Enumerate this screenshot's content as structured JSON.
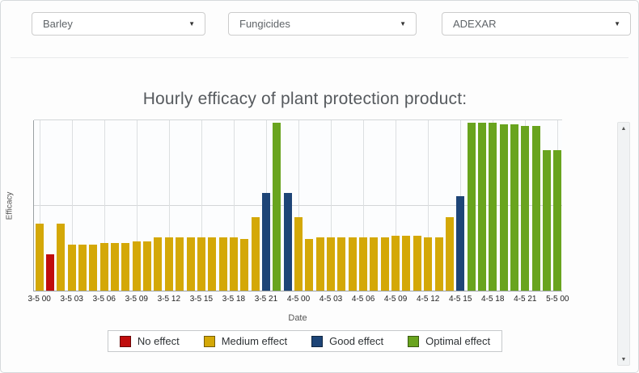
{
  "filters": {
    "crop": {
      "value": "Barley"
    },
    "category": {
      "value": "Fungicides"
    },
    "product": {
      "value": "ADEXAR"
    }
  },
  "icons": {
    "dropdown_arrow": "▼",
    "scroll_up": "▲",
    "scroll_down": "▼"
  },
  "chart_data": {
    "type": "bar",
    "title": "Hourly efficacy of plant protection product:",
    "xlabel": "Date",
    "ylabel": "Efficacy",
    "ylim": [
      0,
      100
    ],
    "grid": true,
    "gridline_values": [
      50,
      100
    ],
    "tick_every": 3,
    "legend_position": "bottom",
    "colors": {
      "no": "#c00d0d",
      "medium": "#d4a807",
      "good": "#1e4577",
      "optimal": "#69a41e"
    },
    "legend": [
      {
        "key": "no",
        "label": "No effect"
      },
      {
        "key": "medium",
        "label": "Medium effect"
      },
      {
        "key": "good",
        "label": "Good effect"
      },
      {
        "key": "optimal",
        "label": "Optimal effect"
      }
    ],
    "tick_labels": [
      "3-5 00",
      "3-5 03",
      "3-5 06",
      "3-5 09",
      "3-5 12",
      "3-5 15",
      "3-5 18",
      "3-5 21",
      "4-5 00",
      "4-5 03",
      "4-5 06",
      "4-5 09",
      "4-5 12",
      "4-5 15",
      "4-5 18",
      "4-5 21",
      "5-5 00"
    ],
    "bars": [
      {
        "x": "3-5 00",
        "value": 39,
        "effect": "medium"
      },
      {
        "x": "3-5 01",
        "value": 21,
        "effect": "no"
      },
      {
        "x": "3-5 02",
        "value": 39,
        "effect": "medium"
      },
      {
        "x": "3-5 03",
        "value": 27,
        "effect": "medium"
      },
      {
        "x": "3-5 04",
        "value": 27,
        "effect": "medium"
      },
      {
        "x": "3-5 05",
        "value": 27,
        "effect": "medium"
      },
      {
        "x": "3-5 06",
        "value": 28,
        "effect": "medium"
      },
      {
        "x": "3-5 07",
        "value": 28,
        "effect": "medium"
      },
      {
        "x": "3-5 08",
        "value": 28,
        "effect": "medium"
      },
      {
        "x": "3-5 09",
        "value": 29,
        "effect": "medium"
      },
      {
        "x": "3-5 10",
        "value": 29,
        "effect": "medium"
      },
      {
        "x": "3-5 11",
        "value": 31,
        "effect": "medium"
      },
      {
        "x": "3-5 12",
        "value": 31,
        "effect": "medium"
      },
      {
        "x": "3-5 13",
        "value": 31,
        "effect": "medium"
      },
      {
        "x": "3-5 14",
        "value": 31,
        "effect": "medium"
      },
      {
        "x": "3-5 15",
        "value": 31,
        "effect": "medium"
      },
      {
        "x": "3-5 16",
        "value": 31,
        "effect": "medium"
      },
      {
        "x": "3-5 17",
        "value": 31,
        "effect": "medium"
      },
      {
        "x": "3-5 18",
        "value": 31,
        "effect": "medium"
      },
      {
        "x": "3-5 19",
        "value": 30,
        "effect": "medium"
      },
      {
        "x": "3-5 20",
        "value": 43,
        "effect": "medium"
      },
      {
        "x": "3-5 21",
        "value": 57,
        "effect": "good"
      },
      {
        "x": "3-5 22",
        "value": 98,
        "effect": "optimal"
      },
      {
        "x": "3-5 23",
        "value": 57,
        "effect": "good"
      },
      {
        "x": "4-5 00",
        "value": 43,
        "effect": "medium"
      },
      {
        "x": "4-5 01",
        "value": 30,
        "effect": "medium"
      },
      {
        "x": "4-5 02",
        "value": 31,
        "effect": "medium"
      },
      {
        "x": "4-5 03",
        "value": 31,
        "effect": "medium"
      },
      {
        "x": "4-5 04",
        "value": 31,
        "effect": "medium"
      },
      {
        "x": "4-5 05",
        "value": 31,
        "effect": "medium"
      },
      {
        "x": "4-5 06",
        "value": 31,
        "effect": "medium"
      },
      {
        "x": "4-5 07",
        "value": 31,
        "effect": "medium"
      },
      {
        "x": "4-5 08",
        "value": 31,
        "effect": "medium"
      },
      {
        "x": "4-5 09",
        "value": 32,
        "effect": "medium"
      },
      {
        "x": "4-5 10",
        "value": 32,
        "effect": "medium"
      },
      {
        "x": "4-5 11",
        "value": 32,
        "effect": "medium"
      },
      {
        "x": "4-5 12",
        "value": 31,
        "effect": "medium"
      },
      {
        "x": "4-5 13",
        "value": 31,
        "effect": "medium"
      },
      {
        "x": "4-5 14",
        "value": 43,
        "effect": "medium"
      },
      {
        "x": "4-5 15",
        "value": 55,
        "effect": "good"
      },
      {
        "x": "4-5 16",
        "value": 98,
        "effect": "optimal"
      },
      {
        "x": "4-5 17",
        "value": 98,
        "effect": "optimal"
      },
      {
        "x": "4-5 18",
        "value": 98,
        "effect": "optimal"
      },
      {
        "x": "4-5 19",
        "value": 97,
        "effect": "optimal"
      },
      {
        "x": "4-5 20",
        "value": 97,
        "effect": "optimal"
      },
      {
        "x": "4-5 21",
        "value": 96,
        "effect": "optimal"
      },
      {
        "x": "4-5 22",
        "value": 96,
        "effect": "optimal"
      },
      {
        "x": "4-5 23",
        "value": 82,
        "effect": "optimal"
      },
      {
        "x": "5-5 00",
        "value": 82,
        "effect": "optimal"
      }
    ]
  }
}
